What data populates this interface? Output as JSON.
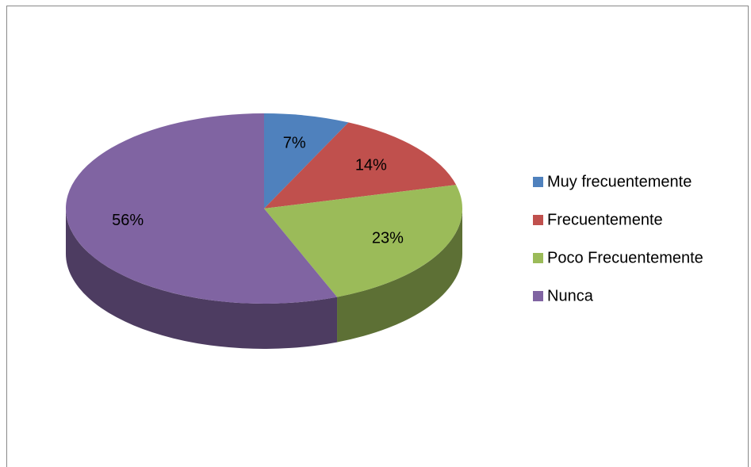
{
  "chart_data": {
    "type": "pie",
    "categories": [
      "Muy frecuentemente",
      "Frecuentemente",
      "Poco Frecuentemente",
      "Nunca"
    ],
    "values": [
      7,
      14,
      23,
      56
    ],
    "value_labels": [
      "7%",
      "14%",
      "23%",
      "56%"
    ],
    "colors": [
      "#4f81bd",
      "#c0504d",
      "#9bbb59",
      "#8064a2"
    ],
    "legend": "right"
  }
}
